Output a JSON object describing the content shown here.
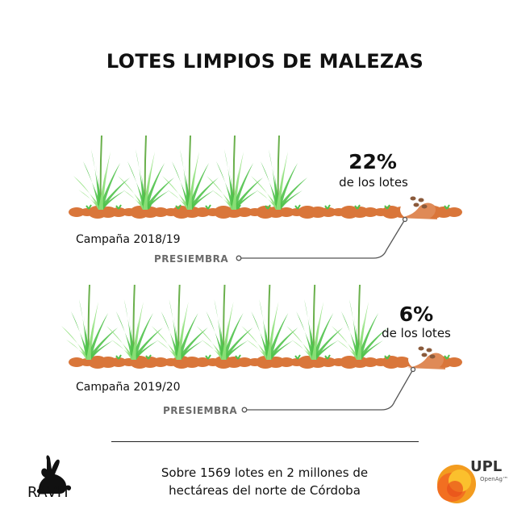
{
  "title": "LOTES LIMPIOS DE MALEZAS",
  "panels": [
    {
      "campaign": "Campaña 2018/19",
      "percent": "22%",
      "percent_label": "de los lotes",
      "stage": "PRESIEMBRA",
      "plants": 5
    },
    {
      "campaign": "Campaña 2019/20",
      "percent": "6%",
      "percent_label": "de los lotes",
      "stage": "PRESIEMBRA",
      "plants": 7
    }
  ],
  "footer": {
    "line1": "Sobre 1569 lotes en 2 millones de",
    "line2": "hectáreas del norte de Córdoba"
  },
  "logos": {
    "left": "RAVIT",
    "right": "UPL",
    "right_sub": "OpenAg™"
  },
  "colors": {
    "soil": "#d9763a",
    "grass": "#4fc24a",
    "grass_light": "#8ee07a",
    "seed": "#8a5a3b"
  }
}
